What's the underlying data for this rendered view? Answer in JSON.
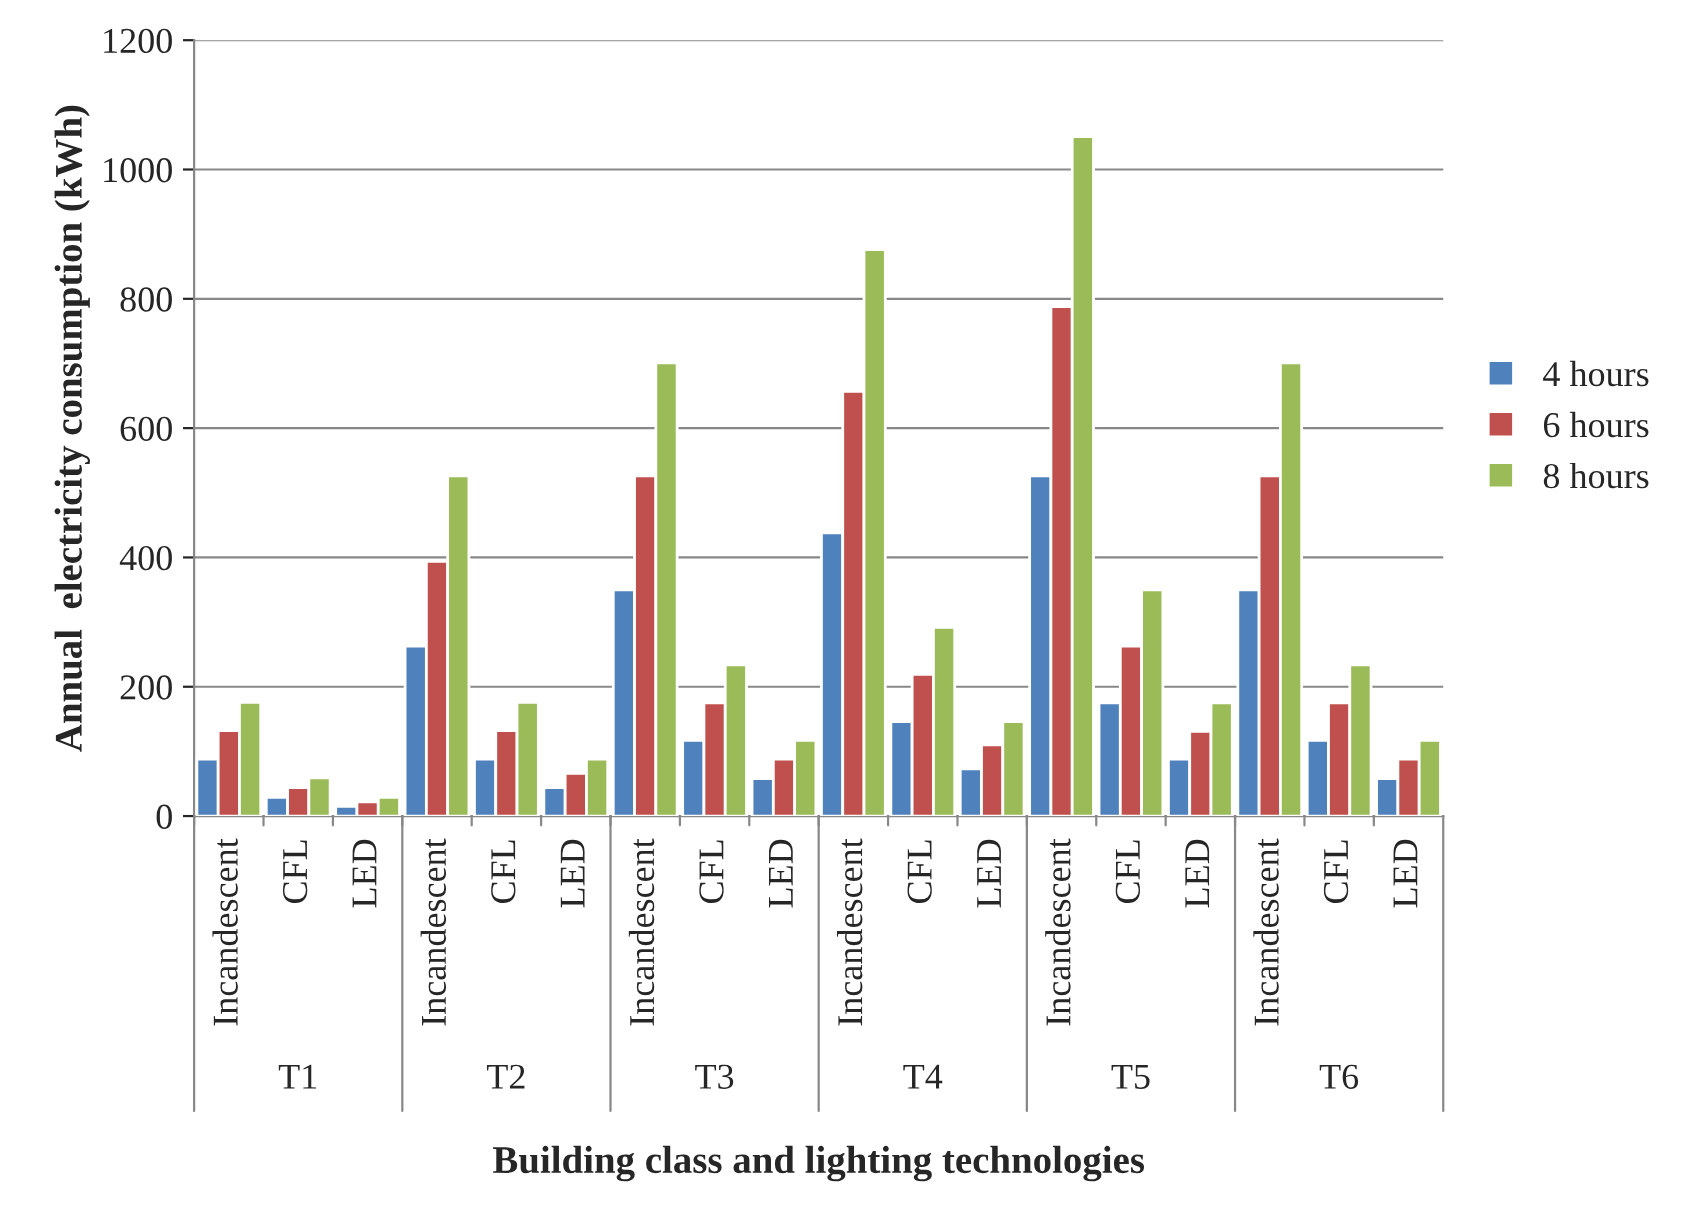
{
  "chart_data": {
    "type": "bar",
    "xlabel": "Building class and lighting technologies",
    "ylabel": "Annual  electricity consumption (kWh)",
    "categories": [
      "Incandescent",
      "CFL",
      "LED",
      "Incandescent",
      "CFL",
      "LED",
      "Incandescent",
      "CFL",
      "LED",
      "Incandescent",
      "CFL",
      "LED",
      "Incandescent",
      "CFL",
      "LED",
      "Incandescent",
      "CFL",
      "LED"
    ],
    "annotations": [
      "T1",
      "T2",
      "T3",
      "T4",
      "T5",
      "T6"
    ],
    "series": [
      {
        "name": "4 hours",
        "color": "#4f81bd",
        "values": [
          88,
          29,
          15,
          263,
          88,
          44,
          350,
          117,
          58,
          438,
          146,
          73,
          526,
          175,
          88,
          350,
          117,
          58
        ]
      },
      {
        "name": "6 hours",
        "color": "#c0504d",
        "values": [
          132,
          44,
          22,
          394,
          132,
          66,
          526,
          175,
          88,
          657,
          219,
          110,
          788,
          263,
          131,
          526,
          175,
          88
        ]
      },
      {
        "name": "8 hours",
        "color": "#9bbb59",
        "values": [
          176,
          59,
          29,
          526,
          176,
          88,
          701,
          234,
          117,
          876,
          292,
          146,
          1051,
          350,
          175,
          701,
          234,
          117
        ]
      }
    ],
    "ylim": [
      0,
      1200
    ],
    "yticks": [
      0,
      200,
      400,
      600,
      800,
      1000,
      1200
    ],
    "grid": "y",
    "legend": "right"
  }
}
